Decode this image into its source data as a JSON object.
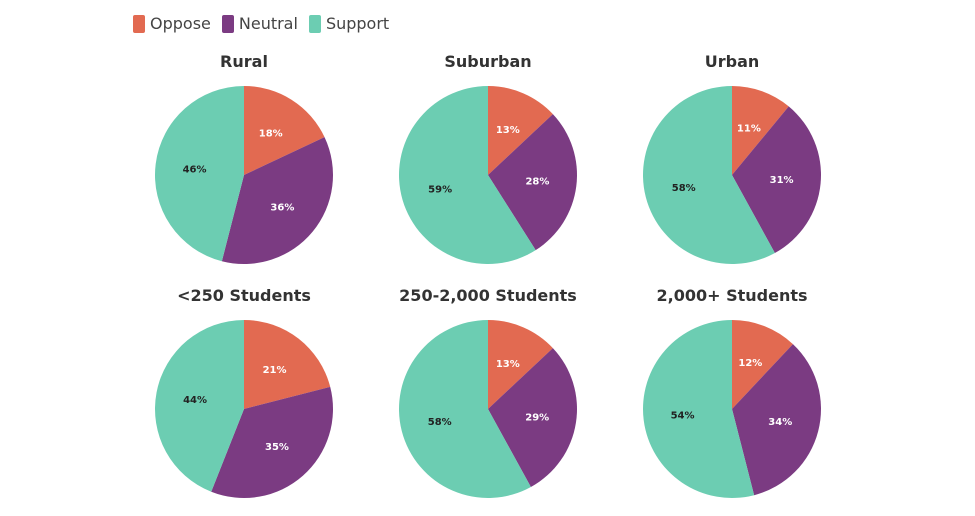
{
  "legend": {
    "oppose": "Oppose",
    "neutral": "Neutral",
    "support": "Support"
  },
  "colors": {
    "Oppose": "#e26a51",
    "Neutral": "#7b3b82",
    "Support": "#6ccdb2"
  },
  "chart_data": [
    {
      "type": "pie",
      "title": "Rural",
      "labels": [
        "Oppose",
        "Neutral",
        "Support"
      ],
      "values": [
        18,
        36,
        46
      ],
      "data_labels": [
        "18%",
        "36%",
        "46%"
      ]
    },
    {
      "type": "pie",
      "title": "Suburban",
      "labels": [
        "Oppose",
        "Neutral",
        "Support"
      ],
      "values": [
        13,
        28,
        59
      ],
      "data_labels": [
        "13%",
        "28%",
        "59%"
      ]
    },
    {
      "type": "pie",
      "title": "Urban",
      "labels": [
        "Oppose",
        "Neutral",
        "Support"
      ],
      "values": [
        11,
        31,
        58
      ],
      "data_labels": [
        "11%",
        "31%",
        "58%"
      ]
    },
    {
      "type": "pie",
      "title": "<250 Students",
      "labels": [
        "Oppose",
        "Neutral",
        "Support"
      ],
      "values": [
        21,
        35,
        44
      ],
      "data_labels": [
        "21%",
        "35%",
        "44%"
      ]
    },
    {
      "type": "pie",
      "title": "250-2,000 Students",
      "labels": [
        "Oppose",
        "Neutral",
        "Support"
      ],
      "values": [
        13,
        29,
        58
      ],
      "data_labels": [
        "13%",
        "29%",
        "58%"
      ]
    },
    {
      "type": "pie",
      "title": "2,000+ Students",
      "labels": [
        "Oppose",
        "Neutral",
        "Support"
      ],
      "values": [
        12,
        34,
        54
      ],
      "data_labels": [
        "12%",
        "34%",
        "54%"
      ]
    }
  ]
}
